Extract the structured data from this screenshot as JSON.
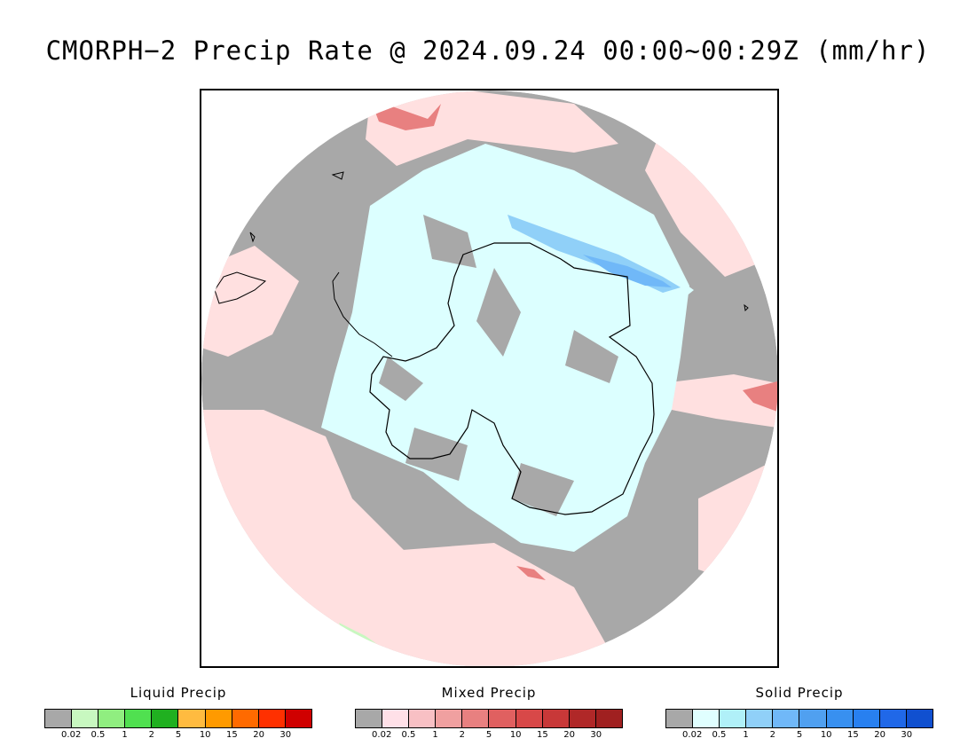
{
  "title": "CMORPH−2 Precip Rate @ 2024.09.24 00:00~00:29Z (mm/hr)",
  "map": {
    "projection": "south-polar-stereographic",
    "background_no_precip": "#a8a8a8",
    "mixed_light": "#ffe0e0",
    "solid_light": "#dcffff",
    "coastline_color": "#000000"
  },
  "legends": [
    {
      "title": "Liquid Precip",
      "colors": [
        "#a8a8a8",
        "#c8f8c0",
        "#90ee80",
        "#50e050",
        "#20b020",
        "#ffbb40",
        "#ff9a00",
        "#ff6a00",
        "#ff3000",
        "#d00000"
      ],
      "ticks": [
        "0.02",
        "0.5",
        "1",
        "2",
        "5",
        "10",
        "15",
        "20",
        "30"
      ]
    },
    {
      "title": "Mixed Precip",
      "colors": [
        "#a8a8a8",
        "#ffe0e8",
        "#f8c0c4",
        "#f0a0a0",
        "#e88080",
        "#e06060",
        "#d84848",
        "#c83838",
        "#b02828",
        "#a02020"
      ],
      "ticks": [
        "0.02",
        "0.5",
        "1",
        "2",
        "5",
        "10",
        "15",
        "20",
        "30"
      ]
    },
    {
      "title": "Solid Precip",
      "colors": [
        "#a8a8a8",
        "#e0ffff",
        "#b0f0f8",
        "#90d0f8",
        "#70b8f8",
        "#50a0f0",
        "#3890f0",
        "#2880f0",
        "#2068e8",
        "#1050d0"
      ],
      "ticks": [
        "0.02",
        "0.5",
        "1",
        "2",
        "5",
        "10",
        "15",
        "20",
        "30"
      ]
    }
  ]
}
